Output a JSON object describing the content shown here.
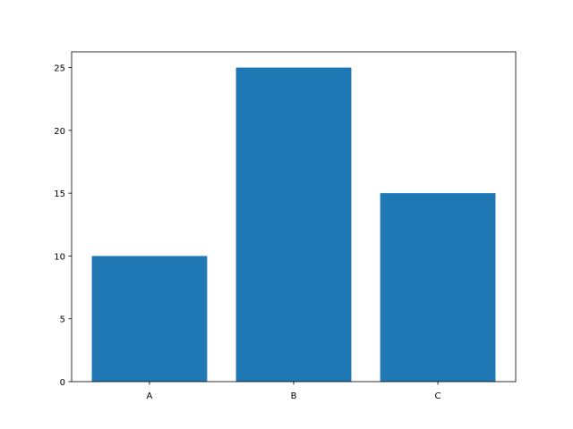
{
  "chart_data": {
    "type": "bar",
    "title": "",
    "xlabel": "",
    "ylabel": "",
    "categories": [
      "A",
      "B",
      "C"
    ],
    "values": [
      10,
      25,
      15
    ],
    "ylim": [
      0,
      26.25
    ],
    "xlim": [
      -0.54,
      2.54
    ],
    "yticks": [
      0,
      5,
      10,
      15,
      20,
      25
    ],
    "ytick_labels": [
      "0",
      "5",
      "10",
      "15",
      "20",
      "25"
    ],
    "bar_width": 0.8,
    "grid": false,
    "colors": {
      "bar": "#1f77b4",
      "axes": "#000000",
      "background": "#ffffff"
    }
  }
}
